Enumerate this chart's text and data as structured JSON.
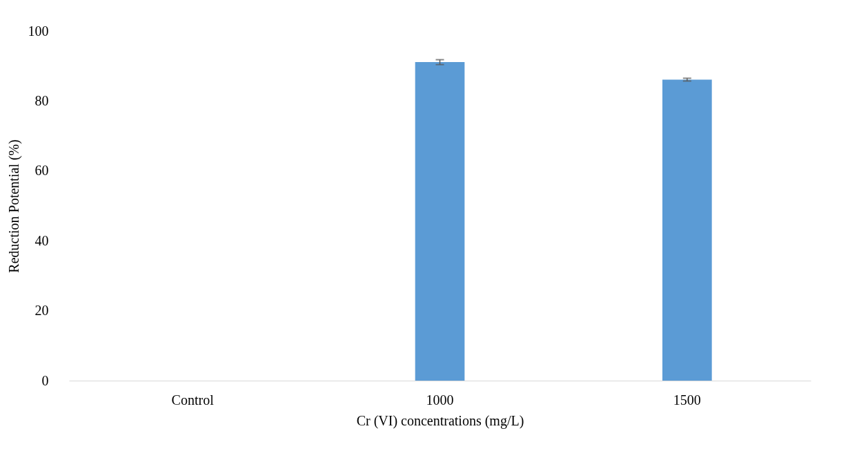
{
  "chart_data": {
    "type": "bar",
    "xlabel": "Cr (VI) concentrations (mg/L)",
    "ylabel": "Reduction Potential (%)",
    "categories": [
      "Control",
      "1000",
      "1500"
    ],
    "values": [
      0,
      91.1,
      86.1
    ],
    "errors": [
      null,
      0.7,
      0.4
    ],
    "color": "#5b9bd5",
    "ylim": [
      0,
      100
    ],
    "yticks": [
      0,
      20,
      40,
      60,
      80,
      100
    ],
    "grid": false
  }
}
